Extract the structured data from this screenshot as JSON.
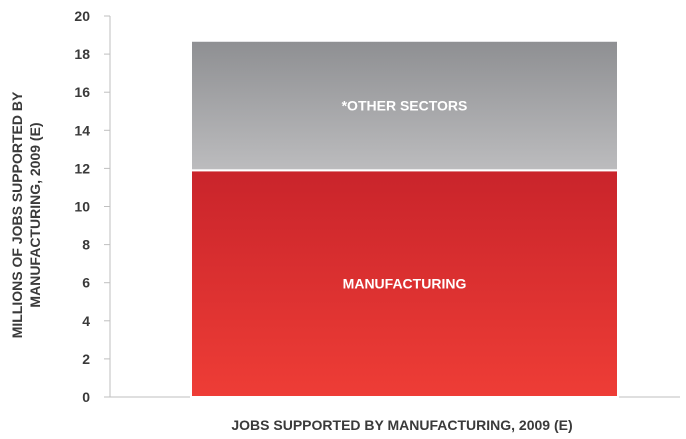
{
  "chart_data": {
    "type": "bar",
    "stacked": true,
    "xlabel": "JOBS SUPPORTED BY MANUFACTURING, 2009 (E)",
    "ylabel_lines": [
      "MILLIONS OF JOBS SUPPORTED BY",
      "MANUFACTURING, 2009 (E)"
    ],
    "ylim": [
      0,
      20
    ],
    "yticks": [
      "0",
      "2",
      "4",
      "6",
      "8",
      "10",
      "12",
      "14",
      "16",
      "18",
      "20"
    ],
    "grid": false,
    "series": [
      {
        "label": "MANUFACTURING",
        "value": 11.9,
        "color_top": "#c9242b",
        "color_bottom": "#ee3d36"
      },
      {
        "label": "*OTHER SECTORS",
        "value": 6.8,
        "color_top": "#8e8f92",
        "color_bottom": "#bcbcbe"
      }
    ]
  }
}
